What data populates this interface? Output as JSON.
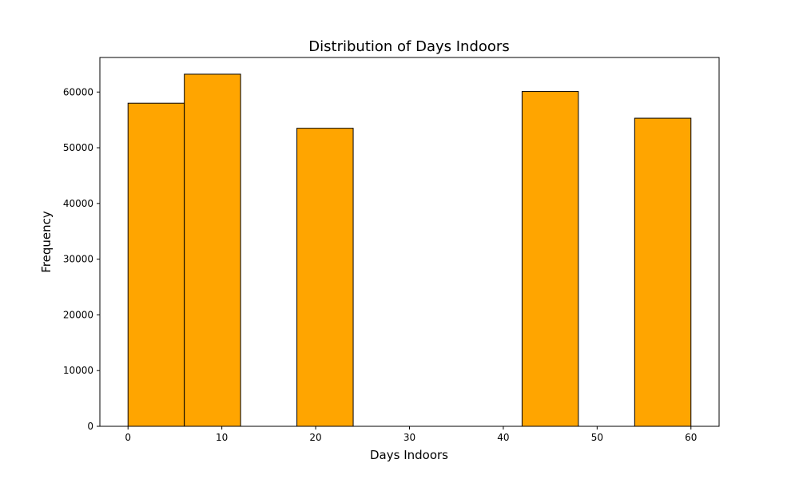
{
  "chart_data": {
    "type": "bar",
    "title": "Distribution of Days Indoors",
    "xlabel": "Days Indoors",
    "ylabel": "Frequency",
    "xlim": [
      -3,
      63
    ],
    "ylim": [
      0,
      66200
    ],
    "xticks": [
      0,
      10,
      20,
      30,
      40,
      50,
      60
    ],
    "yticks": [
      0,
      10000,
      20000,
      30000,
      40000,
      50000,
      60000
    ],
    "bin_edges": [
      0,
      6,
      12,
      18,
      24,
      30,
      36,
      42,
      48,
      54,
      60
    ],
    "values": [
      58000,
      63200,
      0,
      53500,
      0,
      0,
      0,
      60100,
      0,
      55300
    ],
    "bar_color": "#FFA500",
    "edge_color": "#000000",
    "grid": false
  }
}
